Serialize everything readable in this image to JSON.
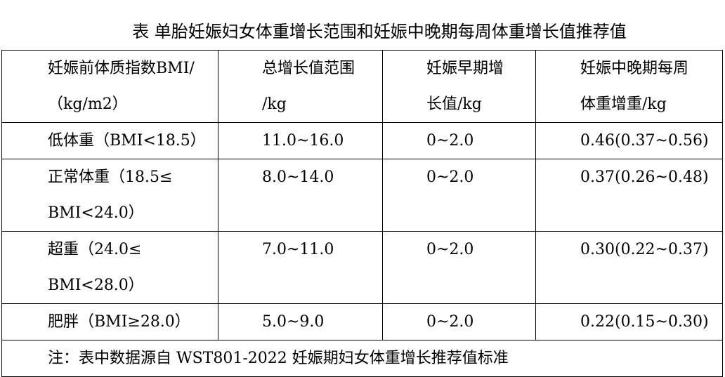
{
  "title": "表 单胎妊娠妇女体重增长范围和妊娠中晚期每周体重增长值推荐值",
  "headers": [
    {
      "line1": "妊娠前体质指数BMI/",
      "line2": "（kg/m2）"
    },
    {
      "line1": "总增长值范围",
      "line2": "/kg"
    },
    {
      "line1": "妊娠早期增",
      "line2": "长值/kg"
    },
    {
      "line1": "妊娠中晚期每周",
      "line2": "体重增重/kg"
    }
  ],
  "rows": [
    {
      "category": {
        "line1": "低体重（BMI<18.5）",
        "line2": ""
      },
      "total": "11.0~16.0",
      "early": "0~2.0",
      "weekly": "0.46(0.37~0.56)"
    },
    {
      "category": {
        "line1": "正常体重（18.5≤",
        "line2": "BMI<24.0）"
      },
      "total": "8.0~14.0",
      "early": "0~2.0",
      "weekly": "0.37(0.26~0.48)"
    },
    {
      "category": {
        "line1": "超重（24.0≤",
        "line2": "BMI<28.0）"
      },
      "total": "7.0~11.0",
      "early": "0~2.0",
      "weekly": "0.30(0.22~0.37)"
    },
    {
      "category": {
        "line1": "肥胖（BMI≥28.0）",
        "line2": ""
      },
      "total": "5.0~9.0",
      "early": "0~2.0",
      "weekly": "0.22(0.15~0.30)"
    }
  ],
  "note": "注：表中数据源自 WST801-2022 妊娠期妇女体重增长推荐值标准"
}
